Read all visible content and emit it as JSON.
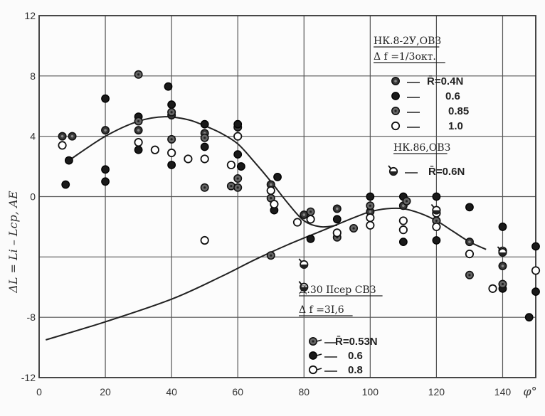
{
  "chart_data": {
    "type": "scatter",
    "xlabel": "φ°",
    "ylabel": "ΔL = Li – Lср, АЕ",
    "xlim": [
      0,
      150
    ],
    "ylim": [
      -12,
      12
    ],
    "x_ticks": [
      "0",
      "20",
      "40",
      "60",
      "80",
      "100",
      "120",
      "140"
    ],
    "y_ticks": [
      "12",
      "8",
      "4",
      "0",
      "-8",
      "-12"
    ],
    "grid": true,
    "legend_groups": [
      {
        "title_lines": [
          "НК.8-2У,ОВЗ",
          "Δ f =1/3окт."
        ],
        "entries": [
          {
            "marker": "dark-dot",
            "label": "R̄=0.4N"
          },
          {
            "marker": "black-dot",
            "label": "0.6"
          },
          {
            "marker": "grey-dot",
            "label": "0.85"
          },
          {
            "marker": "open",
            "label": "1.0"
          }
        ]
      },
      {
        "title_lines": [
          "НК.86,ОВЗ"
        ],
        "entries": [
          {
            "marker": "tailed",
            "label": "R̄=0.6N"
          }
        ]
      },
      {
        "title_lines": [
          "Д.30 IIсер СВЗ",
          "Δ f =3I,6"
        ],
        "entries": [
          {
            "marker": "flag-dark",
            "label": "R̄=0.53N"
          },
          {
            "marker": "flag-black",
            "label": "0.6"
          },
          {
            "marker": "flag-open",
            "label": "0.8"
          }
        ]
      }
    ],
    "series": [
      {
        "marker": "dark-dot",
        "points": [
          [
            7,
            4.0
          ],
          [
            10,
            4.0
          ],
          [
            20,
            4.4
          ],
          [
            30,
            4.4
          ],
          [
            40,
            5.4
          ],
          [
            50,
            4.2
          ],
          [
            60,
            4.6
          ],
          [
            70,
            0.8
          ],
          [
            80,
            -1.2
          ],
          [
            90,
            -0.8
          ],
          [
            100,
            -1.0
          ],
          [
            110,
            -0.6
          ],
          [
            120,
            -1.6
          ],
          [
            130,
            -3.0
          ],
          [
            140,
            -4.6
          ]
        ]
      },
      {
        "marker": "black-dot",
        "points": [
          [
            8,
            0.8
          ],
          [
            9,
            2.4
          ],
          [
            20,
            6.5
          ],
          [
            20,
            1.0
          ],
          [
            20,
            1.8
          ],
          [
            30,
            5.3
          ],
          [
            30,
            3.1
          ],
          [
            39,
            7.3
          ],
          [
            40,
            6.1
          ],
          [
            40,
            2.1
          ],
          [
            50,
            4.8
          ],
          [
            50,
            3.3
          ],
          [
            60,
            4.8
          ],
          [
            60,
            2.8
          ],
          [
            61,
            2.0
          ],
          [
            72,
            1.3
          ],
          [
            71,
            -0.9
          ],
          [
            82,
            -2.8
          ],
          [
            90,
            -1.5
          ],
          [
            100,
            0.0
          ],
          [
            110,
            -3.0
          ],
          [
            110,
            0.0
          ],
          [
            120,
            0.0
          ],
          [
            120,
            -2.9
          ],
          [
            130,
            -0.7
          ],
          [
            140,
            -2.0
          ],
          [
            140,
            -6.1
          ],
          [
            150,
            -3.3
          ],
          [
            150,
            -6.3
          ],
          [
            148,
            -8.0
          ]
        ]
      },
      {
        "marker": "grey-dot",
        "points": [
          [
            30,
            8.1
          ],
          [
            30,
            5.0
          ],
          [
            40,
            3.8
          ],
          [
            40,
            5.6
          ],
          [
            50,
            3.9
          ],
          [
            50,
            0.6
          ],
          [
            58,
            0.7
          ],
          [
            60,
            1.2
          ],
          [
            60,
            0.6
          ],
          [
            70,
            -0.1
          ],
          [
            70,
            -3.9
          ],
          [
            82,
            -1.0
          ],
          [
            90,
            -2.7
          ],
          [
            95,
            -2.1
          ],
          [
            100,
            -0.6
          ],
          [
            111,
            -0.3
          ],
          [
            120,
            -1.6
          ],
          [
            130,
            -5.2
          ],
          [
            140,
            -5.8
          ]
        ]
      },
      {
        "marker": "open",
        "points": [
          [
            7,
            3.4
          ],
          [
            30,
            3.6
          ],
          [
            35,
            3.1
          ],
          [
            40,
            2.9
          ],
          [
            45,
            2.5
          ],
          [
            50,
            2.5
          ],
          [
            50,
            -2.9
          ],
          [
            58,
            2.1
          ],
          [
            60,
            4.0
          ],
          [
            70,
            0.4
          ],
          [
            71,
            -0.5
          ],
          [
            78,
            -1.7
          ],
          [
            82,
            -1.5
          ],
          [
            90,
            -2.4
          ],
          [
            100,
            -1.4
          ],
          [
            100,
            -1.9
          ],
          [
            110,
            -1.6
          ],
          [
            110,
            -2.2
          ],
          [
            120,
            -1.1
          ],
          [
            120,
            -2.0
          ],
          [
            130,
            -3.8
          ],
          [
            137,
            -6.1
          ],
          [
            140,
            -3.6
          ],
          [
            150,
            -4.9
          ]
        ]
      },
      {
        "marker": "tailed",
        "points": [
          [
            80,
            -4.5
          ],
          [
            80,
            -6.0
          ],
          [
            120,
            -0.9
          ],
          [
            140,
            -3.7
          ]
        ]
      }
    ],
    "curves": [
      {
        "name": "curve-upper",
        "points": [
          [
            9,
            2.4
          ],
          [
            20,
            4.0
          ],
          [
            30,
            5.0
          ],
          [
            38,
            5.3
          ],
          [
            45,
            5.1
          ],
          [
            50,
            4.7
          ],
          [
            55,
            4.2
          ],
          [
            60,
            3.5
          ],
          [
            65,
            2.3
          ],
          [
            70,
            1.0
          ],
          [
            75,
            -0.4
          ],
          [
            80,
            -1.6
          ],
          [
            85,
            -2.0
          ],
          [
            90,
            -1.9
          ]
        ]
      },
      {
        "name": "curve-lower",
        "points": [
          [
            2,
            -9.5
          ],
          [
            20,
            -8.3
          ],
          [
            40,
            -6.8
          ],
          [
            55,
            -5.3
          ],
          [
            65,
            -4.2
          ],
          [
            75,
            -3.2
          ],
          [
            85,
            -2.3
          ],
          [
            95,
            -1.4
          ],
          [
            100,
            -1.0
          ],
          [
            105,
            -0.8
          ],
          [
            110,
            -0.8
          ],
          [
            115,
            -1.1
          ],
          [
            120,
            -1.6
          ],
          [
            125,
            -2.3
          ],
          [
            130,
            -3.0
          ],
          [
            135,
            -3.5
          ]
        ]
      }
    ]
  }
}
